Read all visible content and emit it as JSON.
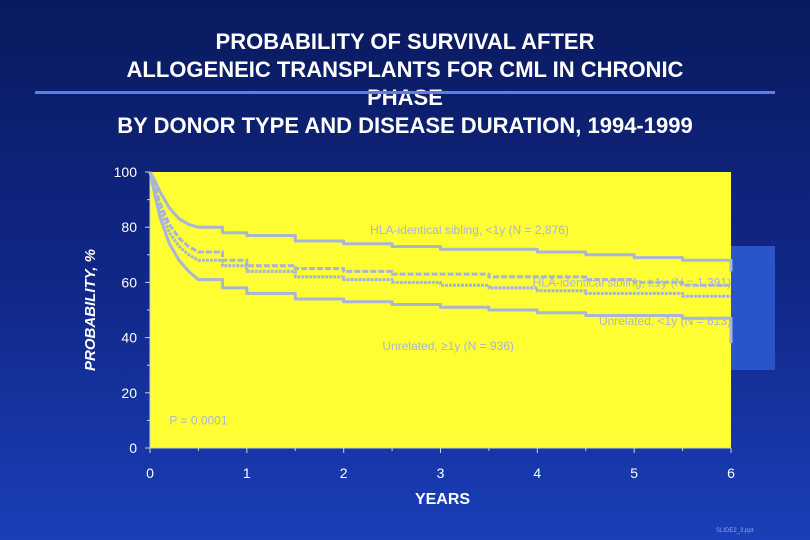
{
  "chart_data": {
    "type": "line",
    "title_lines": [
      "PROBABILITY OF SURVIVAL AFTER",
      "ALLOGENEIC TRANSPLANTS FOR CML IN CHRONIC",
      "PHASE",
      "BY DONOR TYPE AND DISEASE DURATION, 1994-1999"
    ],
    "xlabel": "YEARS",
    "ylabel": "PROBABILITY, %",
    "xlim": [
      0,
      6
    ],
    "ylim": [
      0,
      100
    ],
    "x_ticks": [
      "0",
      "1",
      "2",
      "3",
      "4",
      "5",
      "6"
    ],
    "y_ticks": [
      "0",
      "20",
      "40",
      "60",
      "80",
      "100"
    ],
    "plot_background": "#ffff33",
    "line_color": "#a8b4d8",
    "series": [
      {
        "name": "HLA-identical sibling, <1y (N = 2,876)",
        "x": [
          0,
          0.05,
          0.1,
          0.2,
          0.3,
          0.4,
          0.5,
          0.75,
          1.0,
          1.5,
          2.0,
          2.5,
          3.0,
          3.5,
          4.0,
          4.5,
          5.0,
          5.5,
          6.0
        ],
        "y": [
          100,
          97,
          93,
          87,
          83,
          81,
          80,
          78,
          77,
          75,
          74,
          73,
          72,
          72,
          71,
          70,
          69,
          68,
          64
        ]
      },
      {
        "name": "HLA-identical sibling, ≥1y (N = 1,391)",
        "x": [
          0,
          0.05,
          0.1,
          0.2,
          0.3,
          0.4,
          0.5,
          0.75,
          1.0,
          1.5,
          2.0,
          2.5,
          3.0,
          3.5,
          4.0,
          4.5,
          5.0,
          5.5,
          6.0
        ],
        "y": [
          100,
          95,
          89,
          81,
          76,
          73,
          71,
          68,
          66,
          65,
          64,
          63,
          63,
          62,
          62,
          61,
          60,
          59,
          59
        ]
      },
      {
        "name": "Unrelated, <1y (N = 613)",
        "x": [
          0,
          0.05,
          0.1,
          0.2,
          0.3,
          0.4,
          0.5,
          0.75,
          1.0,
          1.5,
          2.0,
          2.5,
          3.0,
          3.5,
          4.0,
          4.5,
          5.0,
          5.5,
          6.0
        ],
        "y": [
          100,
          94,
          87,
          78,
          73,
          70,
          68,
          66,
          64,
          62,
          61,
          60,
          59,
          58,
          57,
          56,
          56,
          55,
          55
        ]
      },
      {
        "name": "Unrelated, ≥1y (N = 936)",
        "x": [
          0,
          0.05,
          0.1,
          0.2,
          0.3,
          0.4,
          0.5,
          0.75,
          1.0,
          1.5,
          2.0,
          2.5,
          3.0,
          3.5,
          4.0,
          4.5,
          5.0,
          5.5,
          6.0
        ],
        "y": [
          100,
          92,
          84,
          74,
          68,
          64,
          61,
          58,
          56,
          54,
          53,
          52,
          51,
          50,
          49,
          48,
          48,
          47,
          38
        ]
      }
    ],
    "annotations": [
      {
        "text": "HLA-identical sibling, <1y (N = 2,876)",
        "x": 3.3,
        "y": 77.5,
        "anchor": "middle"
      },
      {
        "text": "HLA-identical sibling, ≥1y (N = 1,391)",
        "x": 6.0,
        "y": 58.5,
        "anchor": "end"
      },
      {
        "text": "Unrelated, <1y (N = 613)",
        "x": 6.0,
        "y": 44.5,
        "anchor": "end"
      },
      {
        "text": "Unrelated, ≥1y (N = 936)",
        "x": 2.4,
        "y": 35.5,
        "anchor": "start"
      },
      {
        "text": "P = 0.0001",
        "x": 0.2,
        "y": 8.5,
        "anchor": "start"
      }
    ]
  },
  "footnote": "SLIDE2_3.ppt"
}
